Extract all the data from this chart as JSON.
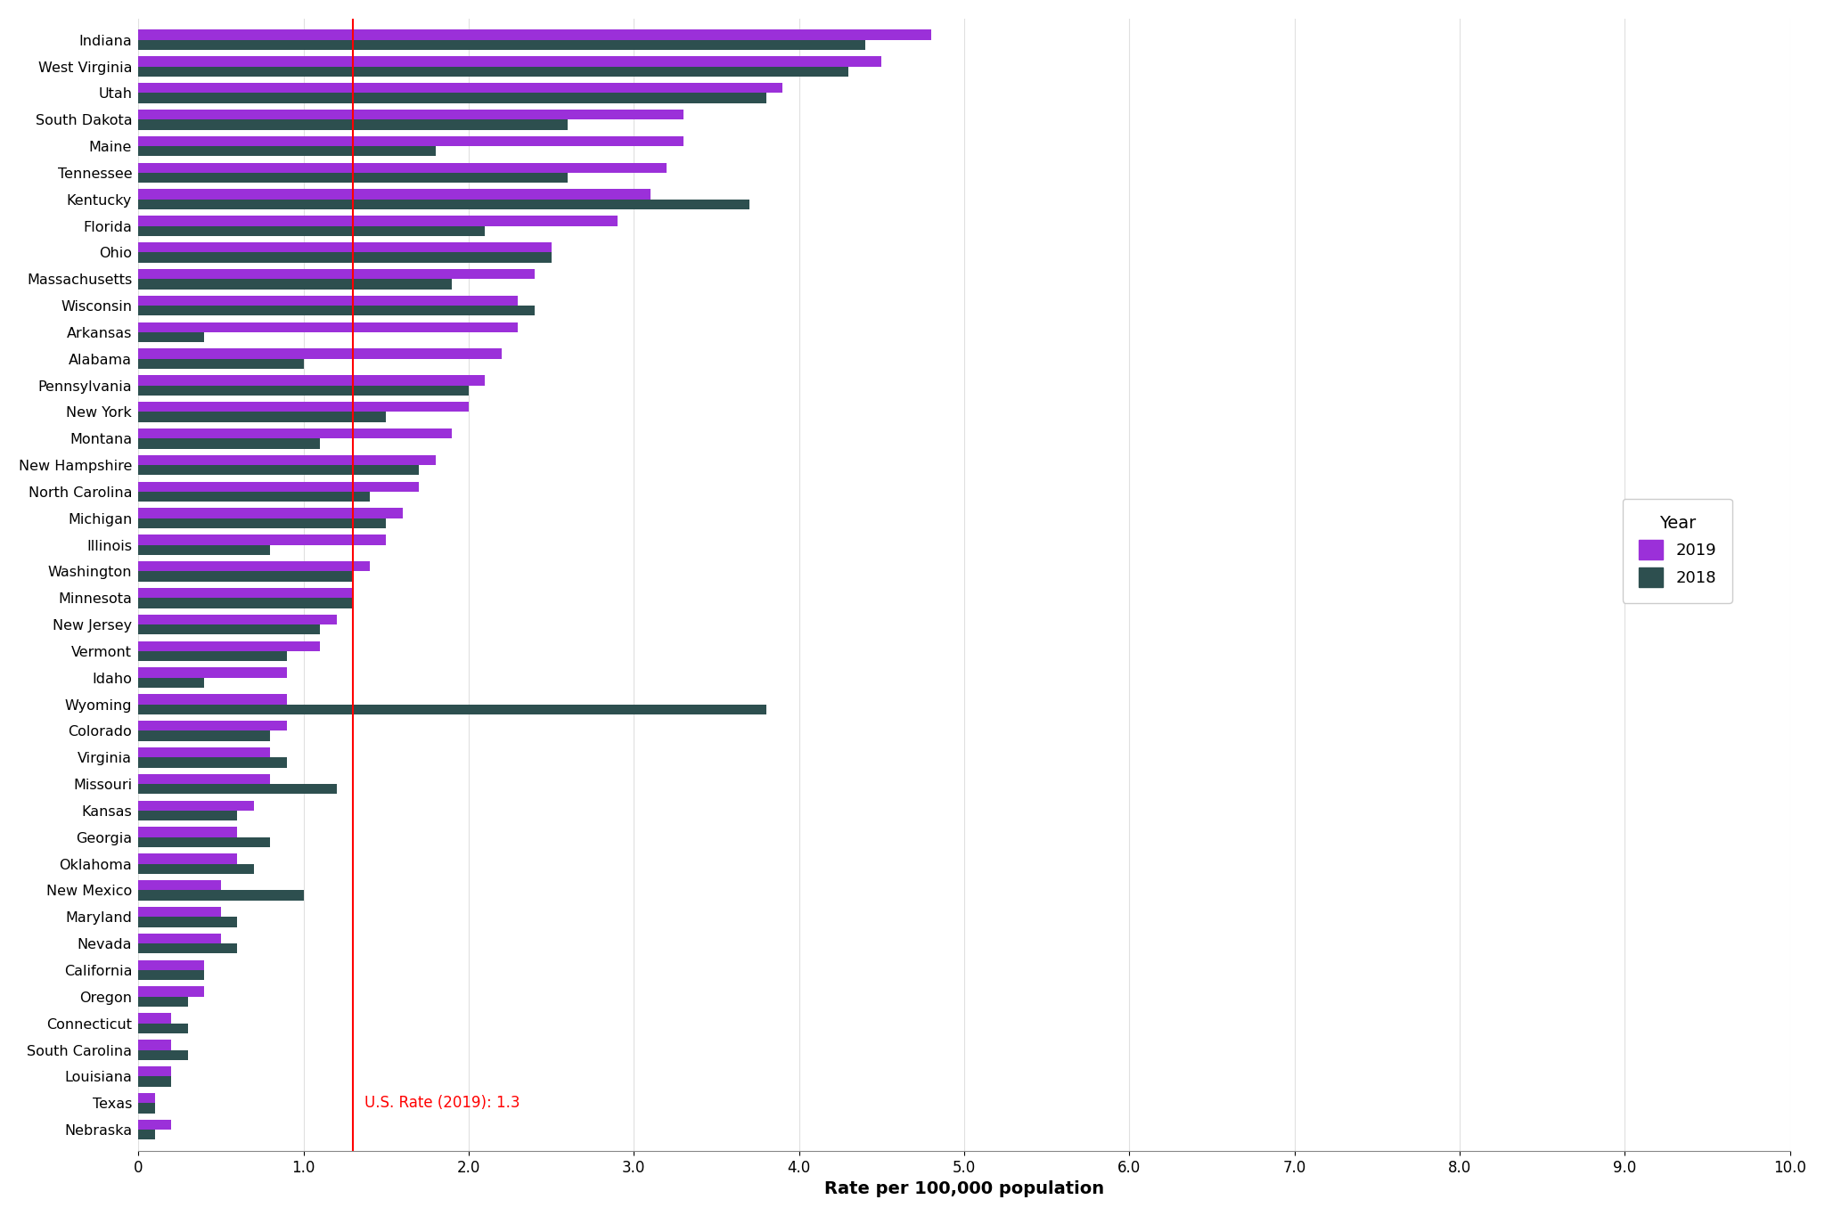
{
  "states": [
    "Indiana",
    "West Virginia",
    "Utah",
    "South Dakota",
    "Maine",
    "Tennessee",
    "Kentucky",
    "Florida",
    "Ohio",
    "Massachusetts",
    "Wisconsin",
    "Arkansas",
    "Alabama",
    "Pennsylvania",
    "New York",
    "Montana",
    "New Hampshire",
    "North Carolina",
    "Michigan",
    "Illinois",
    "Washington",
    "Minnesota",
    "New Jersey",
    "Vermont",
    "Idaho",
    "Wyoming",
    "Colorado",
    "Virginia",
    "Missouri",
    "Kansas",
    "Georgia",
    "Oklahoma",
    "New Mexico",
    "Maryland",
    "Nevada",
    "California",
    "Oregon",
    "Connecticut",
    "South Carolina",
    "Louisiana",
    "Texas",
    "Nebraska"
  ],
  "values_2019": [
    4.8,
    4.5,
    3.9,
    3.3,
    3.3,
    3.2,
    3.1,
    2.9,
    2.5,
    2.4,
    2.3,
    2.3,
    2.2,
    2.1,
    2.0,
    1.9,
    1.8,
    1.7,
    1.6,
    1.5,
    1.4,
    1.3,
    1.2,
    1.1,
    0.9,
    0.9,
    0.9,
    0.8,
    0.8,
    0.7,
    0.6,
    0.6,
    0.5,
    0.5,
    0.5,
    0.4,
    0.4,
    0.2,
    0.2,
    0.2,
    0.1,
    0.2
  ],
  "values_2018": [
    4.4,
    4.3,
    3.8,
    2.6,
    1.8,
    2.6,
    3.7,
    2.1,
    2.5,
    1.9,
    2.4,
    0.4,
    1.0,
    2.0,
    1.5,
    1.1,
    1.7,
    1.4,
    1.5,
    0.8,
    1.3,
    1.3,
    1.1,
    0.9,
    0.4,
    3.8,
    0.8,
    0.9,
    1.2,
    0.6,
    0.8,
    0.7,
    1.0,
    0.6,
    0.6,
    0.4,
    0.3,
    0.3,
    0.3,
    0.2,
    0.1,
    0.1
  ],
  "color_2019": "#9b30d9",
  "color_2018": "#2d4f4f",
  "us_rate_line": 1.3,
  "us_rate_label": "U.S. Rate (2019): 1.3",
  "xlabel": "Rate per 100,000 population",
  "xlim": [
    0,
    10.0
  ],
  "xticks": [
    0,
    1.0,
    2.0,
    3.0,
    4.0,
    5.0,
    6.0,
    7.0,
    8.0,
    9.0,
    10.0
  ],
  "legend_title": "Year",
  "legend_2019": "2019",
  "legend_2018": "2018",
  "bar_height": 0.38,
  "background_color": "#ffffff",
  "grid_color": "#e0e0e0"
}
